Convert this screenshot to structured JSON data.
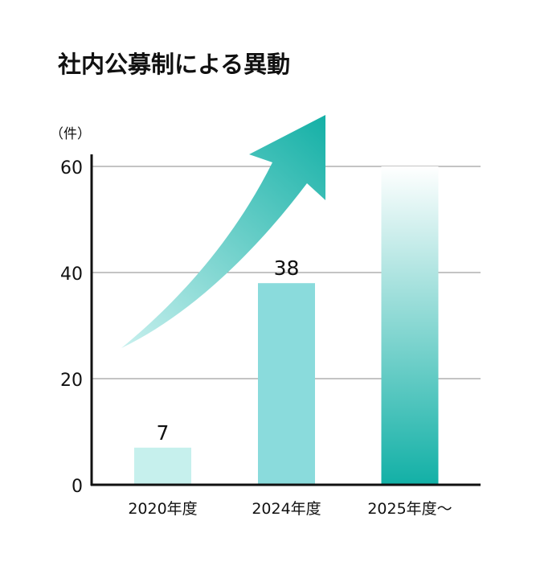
{
  "chart_data": {
    "type": "bar",
    "title": "社内公募制による異動",
    "ylabel": "（件）",
    "xlabel": "",
    "categories": [
      "2020年度",
      "2024年度",
      "2025年度～"
    ],
    "values": [
      7,
      38,
      60
    ],
    "data_labels": [
      "7",
      "38",
      ""
    ],
    "ylim": [
      0,
      60
    ],
    "yticks": [
      0,
      20,
      40,
      60
    ],
    "ytick_labels": [
      "0",
      "20",
      "40",
      "60"
    ],
    "grid": true,
    "colors": {
      "bar_2020": "#c6f0ed",
      "bar_2024": "#8adbdc",
      "bar_2025_top": "#ffffff",
      "bar_2025_bottom": "#12b0a6",
      "arrow_start": "#c8f0ee",
      "arrow_end": "#14b0a6",
      "grid": "#888888",
      "axis": "#111111"
    }
  }
}
